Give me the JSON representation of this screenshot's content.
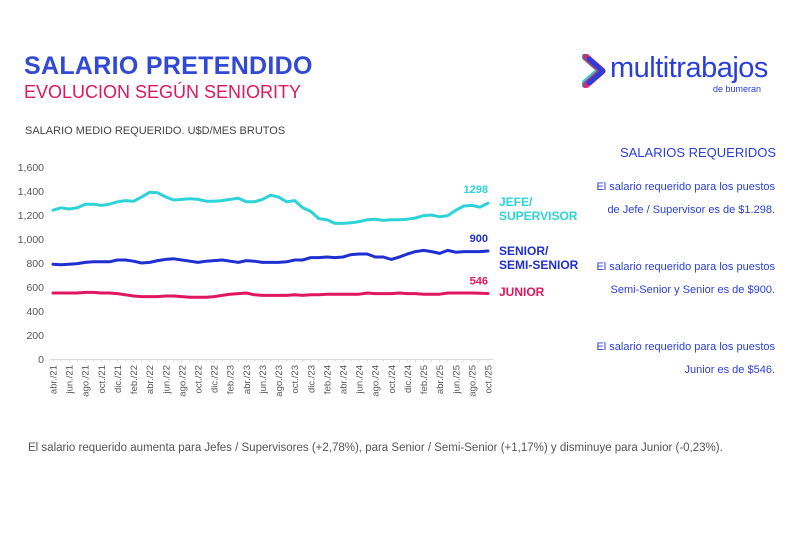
{
  "header": {
    "title": "SALARIO PRETENDIDO",
    "subtitle": "EVOLUCION SEGÚN SENIORITY",
    "unit_note": "SALARIO MEDIO REQUERIDO. U$D/MES BRUTOS"
  },
  "logo": {
    "name": "multitrabajos",
    "tagline": "de bumeran",
    "colors": [
      "#2a3fd9",
      "#e0165e",
      "#2ed3d8"
    ]
  },
  "side_panel": {
    "title": "SALARIOS REQUERIDOS",
    "paragraphs": [
      "El salario requerido para los puestos de Jefe / Supervisor es de $1.298.",
      "El salario requerido para los puestos Semi-Senior y Senior es de $900.",
      "El salario requerido para los puestos Junior es de $546."
    ]
  },
  "footer": "El salario requerido aumenta para Jefes / Supervisores (+2,78%), para Senior / Semi-Senior (+1,17%) y disminuye para Junior (-0,23%).",
  "chart_data": {
    "type": "line",
    "title": "SALARIO MEDIO REQUERIDO. U$D/MES BRUTOS",
    "ylim": [
      0,
      1600
    ],
    "yticks": [
      "0",
      "200",
      "400",
      "600",
      "800",
      "1,000",
      "1,200",
      "1,400",
      "1,600"
    ],
    "yticks_values": [
      0,
      200,
      400,
      600,
      800,
      1000,
      1200,
      1400,
      1600
    ],
    "x": [
      "abr./21",
      "may./21",
      "jun./21",
      "jul./21",
      "ago./21",
      "sep./21",
      "oct./21",
      "nov./21",
      "dic./21",
      "ene./22",
      "feb./22",
      "mar./22",
      "abr./22",
      "may./22",
      "jun./22",
      "jul./22",
      "ago./22",
      "sep./22",
      "oct./22",
      "nov./22",
      "dic./22",
      "ene./23",
      "feb./23",
      "mar./23",
      "abr./23",
      "may./23",
      "jun./23",
      "jul./23",
      "ago./23",
      "sep./23",
      "oct./23",
      "nov./23",
      "dic./23",
      "ene./24",
      "feb./24",
      "mar./24",
      "abr./24",
      "may./24",
      "jun./24",
      "jul./24",
      "ago./24",
      "sep./24",
      "oct./24",
      "nov./24",
      "dic./24",
      "ene./25",
      "feb./25",
      "mar./25",
      "abr./25",
      "may./25",
      "jun./25",
      "jul./25",
      "ago./25",
      "sep./25",
      "oct./25"
    ],
    "xtick_step": 2,
    "grid": false,
    "series": [
      {
        "name": "JEFE/ SUPERVISOR",
        "legend_lines": [
          "JEFE/",
          "SUPERVISOR"
        ],
        "color": "#2ed3d8",
        "end_label": "1298",
        "values": [
          1240,
          1260,
          1250,
          1260,
          1290,
          1290,
          1280,
          1290,
          1310,
          1320,
          1315,
          1350,
          1390,
          1385,
          1350,
          1325,
          1330,
          1335,
          1330,
          1315,
          1315,
          1320,
          1330,
          1340,
          1310,
          1310,
          1330,
          1365,
          1350,
          1310,
          1320,
          1260,
          1230,
          1170,
          1160,
          1130,
          1130,
          1135,
          1145,
          1160,
          1165,
          1155,
          1160,
          1160,
          1165,
          1175,
          1195,
          1200,
          1185,
          1195,
          1240,
          1275,
          1280,
          1265,
          1298
        ]
      },
      {
        "name": "SENIOR/ SEMI-SENIOR",
        "legend_lines": [
          "SENIOR/",
          "SEMI-SENIOR"
        ],
        "color": "#1f2fd0",
        "end_label": "900",
        "values": [
          790,
          785,
          790,
          795,
          805,
          810,
          810,
          810,
          825,
          825,
          815,
          800,
          805,
          820,
          830,
          835,
          825,
          815,
          805,
          815,
          820,
          825,
          815,
          805,
          820,
          815,
          805,
          805,
          805,
          810,
          825,
          825,
          845,
          845,
          850,
          845,
          850,
          870,
          875,
          875,
          850,
          850,
          830,
          850,
          875,
          895,
          905,
          895,
          880,
          905,
          890,
          895,
          895,
          895,
          900
        ]
      },
      {
        "name": "JUNIOR",
        "legend_lines": [
          "JUNIOR"
        ],
        "color": "#e0165e",
        "end_label": "546",
        "values": [
          550,
          550,
          550,
          550,
          555,
          555,
          550,
          550,
          545,
          535,
          525,
          520,
          520,
          520,
          525,
          525,
          520,
          515,
          515,
          515,
          520,
          530,
          540,
          545,
          550,
          535,
          530,
          530,
          530,
          530,
          535,
          530,
          535,
          535,
          540,
          540,
          540,
          540,
          540,
          550,
          545,
          545,
          545,
          550,
          545,
          545,
          540,
          540,
          540,
          550,
          550,
          550,
          550,
          548,
          546
        ]
      }
    ]
  }
}
